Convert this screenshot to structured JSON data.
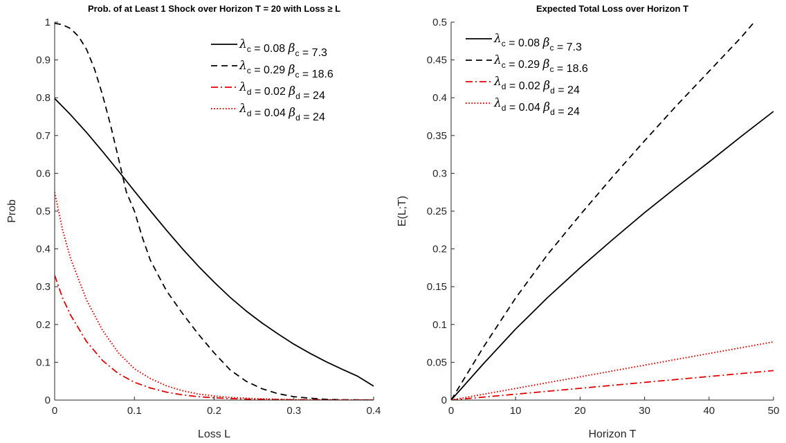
{
  "chart_data": [
    {
      "type": "line",
      "title": "Prob. of at Least 1 Shock over Horizon T = 20 with Loss ≥ L",
      "xlabel": "Loss L",
      "ylabel": "Prob",
      "xlim": [
        0,
        0.4
      ],
      "ylim": [
        0,
        1
      ],
      "xticks": [
        "0",
        "0.1",
        "0.2",
        "0.3",
        "0.4"
      ],
      "yticks": [
        "0",
        "0.1",
        "0.2",
        "0.3",
        "0.4",
        "0.5",
        "0.6",
        "0.7",
        "0.8",
        "0.9",
        "1"
      ],
      "grid": false,
      "legend_position": "top-right",
      "series": [
        {
          "lambda_sub": "c",
          "lambda": "0.08",
          "beta_sub": "c",
          "beta": "7.3",
          "color": "#000000",
          "dash": "solid",
          "x": [
            0,
            0.02,
            0.04,
            0.06,
            0.08,
            0.1,
            0.12,
            0.14,
            0.16,
            0.18,
            0.2,
            0.22,
            0.24,
            0.26,
            0.28,
            0.3,
            0.32,
            0.34,
            0.36,
            0.38,
            0.4
          ],
          "y": [
            0.798,
            0.755,
            0.708,
            0.658,
            0.606,
            0.553,
            0.501,
            0.45,
            0.401,
            0.355,
            0.312,
            0.272,
            0.236,
            0.204,
            0.175,
            0.148,
            0.124,
            0.102,
            0.082,
            0.063,
            0.037
          ]
        },
        {
          "lambda_sub": "c",
          "lambda": "0.29",
          "beta_sub": "c",
          "beta": "18.6",
          "color": "#000000",
          "dash": "dashed",
          "x": [
            0,
            0.01,
            0.02,
            0.03,
            0.04,
            0.05,
            0.06,
            0.07,
            0.08,
            0.09,
            0.1,
            0.11,
            0.12,
            0.13,
            0.14,
            0.16,
            0.18,
            0.2,
            0.22,
            0.24,
            0.26,
            0.28,
            0.3,
            0.32,
            0.34,
            0.36,
            0.38,
            0.4
          ],
          "y": [
            0.997,
            0.993,
            0.983,
            0.962,
            0.928,
            0.876,
            0.808,
            0.728,
            0.64,
            0.55,
            0.5,
            0.43,
            0.37,
            0.33,
            0.29,
            0.23,
            0.175,
            0.125,
            0.08,
            0.05,
            0.03,
            0.017,
            0.009,
            0.005,
            0.002,
            0.001,
            0.0005,
            0.0002
          ]
        },
        {
          "lambda_sub": "d",
          "lambda": "0.02",
          "beta_sub": "d",
          "beta": "24",
          "color": "#e00000",
          "dash": "dashdot",
          "x": [
            0,
            0.01,
            0.02,
            0.04,
            0.06,
            0.08,
            0.1,
            0.12,
            0.14,
            0.16,
            0.18,
            0.2,
            0.22,
            0.25,
            0.3,
            0.35,
            0.4
          ],
          "y": [
            0.33,
            0.27,
            0.225,
            0.155,
            0.105,
            0.07,
            0.047,
            0.032,
            0.021,
            0.014,
            0.009,
            0.006,
            0.004,
            0.002,
            0.001,
            0.0003,
            0.0001
          ]
        },
        {
          "lambda_sub": "d",
          "lambda": "0.04",
          "beta_sub": "d",
          "beta": "24",
          "color": "#e00000",
          "dash": "dotted",
          "x": [
            0,
            0.01,
            0.02,
            0.04,
            0.06,
            0.08,
            0.1,
            0.12,
            0.14,
            0.16,
            0.18,
            0.2,
            0.22,
            0.25,
            0.3,
            0.35,
            0.4
          ],
          "y": [
            0.55,
            0.45,
            0.375,
            0.265,
            0.185,
            0.125,
            0.083,
            0.057,
            0.038,
            0.025,
            0.016,
            0.011,
            0.007,
            0.004,
            0.001,
            0.0004,
            0.0001
          ]
        }
      ]
    },
    {
      "type": "line",
      "title": "Expected Total Loss over Horizon T",
      "xlabel": "Horizon T",
      "ylabel": "E(L;T)",
      "xlim": [
        0,
        50
      ],
      "ylim": [
        0,
        0.5
      ],
      "xticks": [
        "0",
        "10",
        "20",
        "30",
        "40",
        "50"
      ],
      "yticks": [
        "0",
        "0.05",
        "0.1",
        "0.15",
        "0.2",
        "0.25",
        "0.3",
        "0.35",
        "0.4",
        "0.45",
        "0.5"
      ],
      "grid": false,
      "legend_position": "top-left",
      "series": [
        {
          "lambda_sub": "c",
          "lambda": "0.08",
          "beta_sub": "c",
          "beta": "7.3",
          "color": "#000000",
          "dash": "solid",
          "x": [
            0,
            5,
            10,
            15,
            20,
            25,
            30,
            35,
            40,
            45,
            50
          ],
          "y": [
            0,
            0.048,
            0.094,
            0.136,
            0.175,
            0.212,
            0.248,
            0.282,
            0.315,
            0.349,
            0.382
          ]
        },
        {
          "lambda_sub": "c",
          "lambda": "0.29",
          "beta_sub": "c",
          "beta": "18.6",
          "color": "#000000",
          "dash": "dashed",
          "x": [
            0,
            5,
            10,
            15,
            20,
            25,
            30,
            35,
            40,
            45,
            47
          ],
          "y": [
            0,
            0.07,
            0.135,
            0.193,
            0.245,
            0.295,
            0.343,
            0.39,
            0.435,
            0.48,
            0.5
          ]
        },
        {
          "lambda_sub": "d",
          "lambda": "0.02",
          "beta_sub": "d",
          "beta": "24",
          "color": "#e00000",
          "dash": "dashdot",
          "x": [
            0,
            10,
            20,
            30,
            40,
            50
          ],
          "y": [
            0,
            0.0078,
            0.0156,
            0.0234,
            0.0312,
            0.039
          ]
        },
        {
          "lambda_sub": "d",
          "lambda": "0.04",
          "beta_sub": "d",
          "beta": "24",
          "color": "#e00000",
          "dash": "dotted",
          "x": [
            0,
            10,
            20,
            30,
            40,
            50
          ],
          "y": [
            0,
            0.0154,
            0.0308,
            0.0462,
            0.0616,
            0.077
          ]
        }
      ]
    }
  ]
}
